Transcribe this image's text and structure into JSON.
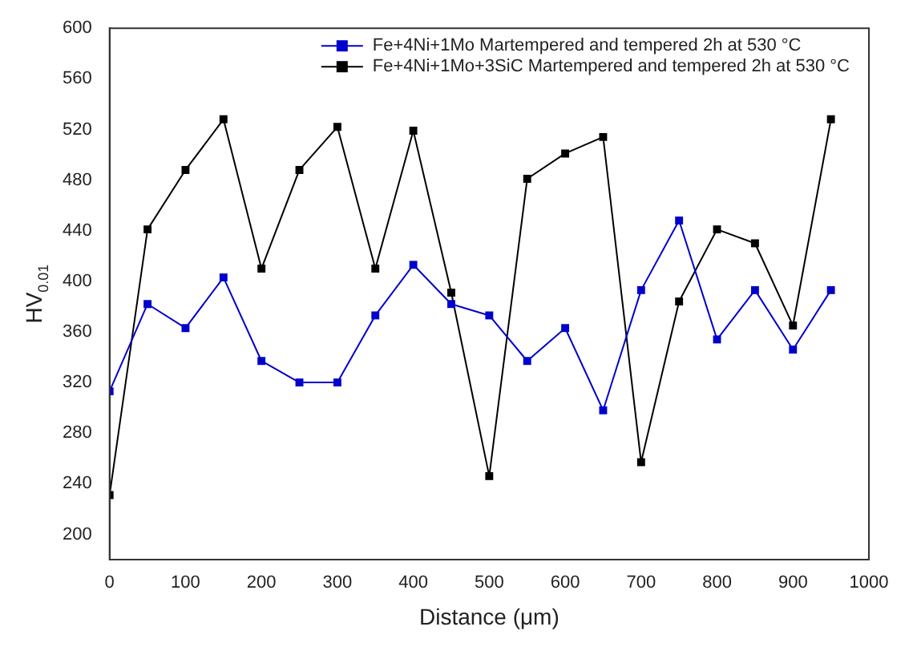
{
  "chart_data": {
    "type": "line",
    "xlabel": "Distance (μm)",
    "ylabel": "HV$_{0.01}$",
    "x": [
      0,
      50,
      100,
      150,
      200,
      250,
      300,
      350,
      400,
      450,
      500,
      550,
      600,
      650,
      700,
      750,
      800,
      850,
      900,
      950
    ],
    "series": [
      {
        "name": "Fe+4Ni+1Mo Martempered and tempered 2h at 530 °C",
        "color": "#0000cc",
        "values": [
          313,
          382,
          363,
          403,
          337,
          320,
          320,
          373,
          413,
          382,
          373,
          337,
          363,
          298,
          393,
          448,
          354,
          393,
          346,
          393
        ]
      },
      {
        "name": "Fe+4Ni+1Mo+3SiC Martempered and tempered 2h at 530 °C",
        "color": "#000000",
        "values": [
          231,
          441,
          488,
          528,
          410,
          488,
          522,
          410,
          519,
          391,
          246,
          481,
          501,
          514,
          257,
          384,
          441,
          430,
          365,
          528
        ]
      }
    ],
    "xlim": [
      0,
      1000
    ],
    "xticks": [
      0,
      100,
      200,
      300,
      400,
      500,
      600,
      700,
      800,
      900,
      1000
    ],
    "ylim": [
      180,
      600
    ],
    "yticks": [
      200,
      240,
      280,
      320,
      360,
      400,
      440,
      480,
      520,
      560,
      600
    ],
    "grid": false,
    "legend": "top right",
    "marker": "square",
    "line_style": "solid"
  }
}
